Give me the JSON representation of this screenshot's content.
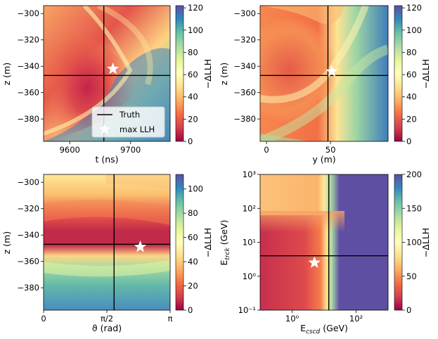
{
  "chart_data": [
    {
      "type": "heatmap",
      "xlabel": "t (ns)",
      "ylabel": "z (m)",
      "x_ticks": [
        {
          "v": 9600,
          "label": "9600"
        },
        {
          "v": 9700,
          "label": "9700"
        }
      ],
      "y_ticks": [
        {
          "v": -300,
          "label": "−300"
        },
        {
          "v": -320,
          "label": "−320"
        },
        {
          "v": -340,
          "label": "−340"
        },
        {
          "v": -360,
          "label": "−360"
        },
        {
          "v": -380,
          "label": "−380"
        }
      ],
      "xlim": [
        9557,
        9765
      ],
      "ylim": [
        -397,
        -294
      ],
      "truth": {
        "x": 9656,
        "y": -347
      },
      "max_llh": {
        "x": 9671,
        "y": -342
      },
      "colorbar": {
        "label": "−ΔLLH",
        "range": [
          0,
          122
        ],
        "ticks": [
          {
            "v": 0,
            "label": "0"
          },
          {
            "v": 20,
            "label": "20"
          },
          {
            "v": 40,
            "label": "40"
          },
          {
            "v": 60,
            "label": "60"
          },
          {
            "v": 80,
            "label": "80"
          },
          {
            "v": 100,
            "label": "100"
          },
          {
            "v": 120,
            "label": "120"
          }
        ]
      },
      "legend": {
        "placement": "lower-right",
        "entries": [
          {
            "label": "Truth",
            "marker": "line"
          },
          {
            "label": "max LLH",
            "marker": "star"
          }
        ]
      }
    },
    {
      "type": "heatmap",
      "xlabel": "y (m)",
      "ylabel": "z (m)",
      "x_ticks": [
        {
          "v": 0,
          "label": "0"
        },
        {
          "v": 50,
          "label": "50"
        }
      ],
      "y_ticks": [
        {
          "v": -300,
          "label": "−300"
        },
        {
          "v": -320,
          "label": "−320"
        },
        {
          "v": -340,
          "label": "−340"
        },
        {
          "v": -360,
          "label": "−360"
        },
        {
          "v": -380,
          "label": "−380"
        }
      ],
      "xlim": [
        -5,
        95
      ],
      "ylim": [
        -397,
        -294
      ],
      "truth": {
        "x": 48,
        "y": -347
      },
      "max_llh": {
        "x": 51,
        "y": -344
      },
      "colorbar": {
        "label": "−ΔLLH",
        "range": [
          0,
          122
        ],
        "ticks": [
          {
            "v": 0,
            "label": "0"
          },
          {
            "v": 20,
            "label": "20"
          },
          {
            "v": 40,
            "label": "40"
          },
          {
            "v": 60,
            "label": "60"
          },
          {
            "v": 80,
            "label": "80"
          },
          {
            "v": 100,
            "label": "100"
          },
          {
            "v": 120,
            "label": "120"
          }
        ]
      }
    },
    {
      "type": "heatmap",
      "xlabel": "ϑ (rad)",
      "ylabel": "z (m)",
      "x_ticks": [
        {
          "v": 0,
          "label": "0"
        },
        {
          "v": 1.5708,
          "label": "π/2"
        },
        {
          "v": 3.1416,
          "label": "π"
        }
      ],
      "y_ticks": [
        {
          "v": -300,
          "label": "−300"
        },
        {
          "v": -320,
          "label": "−320"
        },
        {
          "v": -340,
          "label": "−340"
        },
        {
          "v": -360,
          "label": "−360"
        },
        {
          "v": -380,
          "label": "−380"
        }
      ],
      "xlim": [
        0,
        3.1416
      ],
      "ylim": [
        -397,
        -294
      ],
      "truth": {
        "x": 1.75,
        "y": -347
      },
      "max_llh": {
        "x": 2.4,
        "y": -349
      },
      "colorbar": {
        "label": "−ΔLLH",
        "range": [
          0,
          112
        ],
        "ticks": [
          {
            "v": 0,
            "label": "0"
          },
          {
            "v": 20,
            "label": "20"
          },
          {
            "v": 40,
            "label": "40"
          },
          {
            "v": 60,
            "label": "60"
          },
          {
            "v": 80,
            "label": "80"
          },
          {
            "v": 100,
            "label": "100"
          }
        ]
      }
    },
    {
      "type": "heatmap",
      "xlabel": "E_cscd (GeV)",
      "ylabel": "E_trck (GeV)",
      "log_scale": {
        "x": true,
        "y": true
      },
      "x_ticks": [
        {
          "v": 1,
          "label": "10⁰"
        },
        {
          "v": 100,
          "label": "10²"
        }
      ],
      "y_ticks": [
        {
          "v": 0.1,
          "label": "10⁻¹"
        },
        {
          "v": 1,
          "label": "10⁰"
        },
        {
          "v": 10,
          "label": "10¹"
        },
        {
          "v": 100,
          "label": "10²"
        },
        {
          "v": 1000,
          "label": "10³"
        }
      ],
      "xlim": [
        0.1,
        1000
      ],
      "ylim": [
        0.1,
        1000
      ],
      "truth": {
        "x": 14,
        "y": 4
      },
      "max_llh": {
        "x": 5,
        "y": 2.5
      },
      "colorbar": {
        "label": "−ΔLLH",
        "range": [
          0,
          200
        ],
        "ticks": [
          {
            "v": 0,
            "label": "0"
          },
          {
            "v": 50,
            "label": "50"
          },
          {
            "v": 100,
            "label": "100"
          },
          {
            "v": 150,
            "label": "150"
          },
          {
            "v": 200,
            "label": "200"
          }
        ]
      }
    }
  ]
}
